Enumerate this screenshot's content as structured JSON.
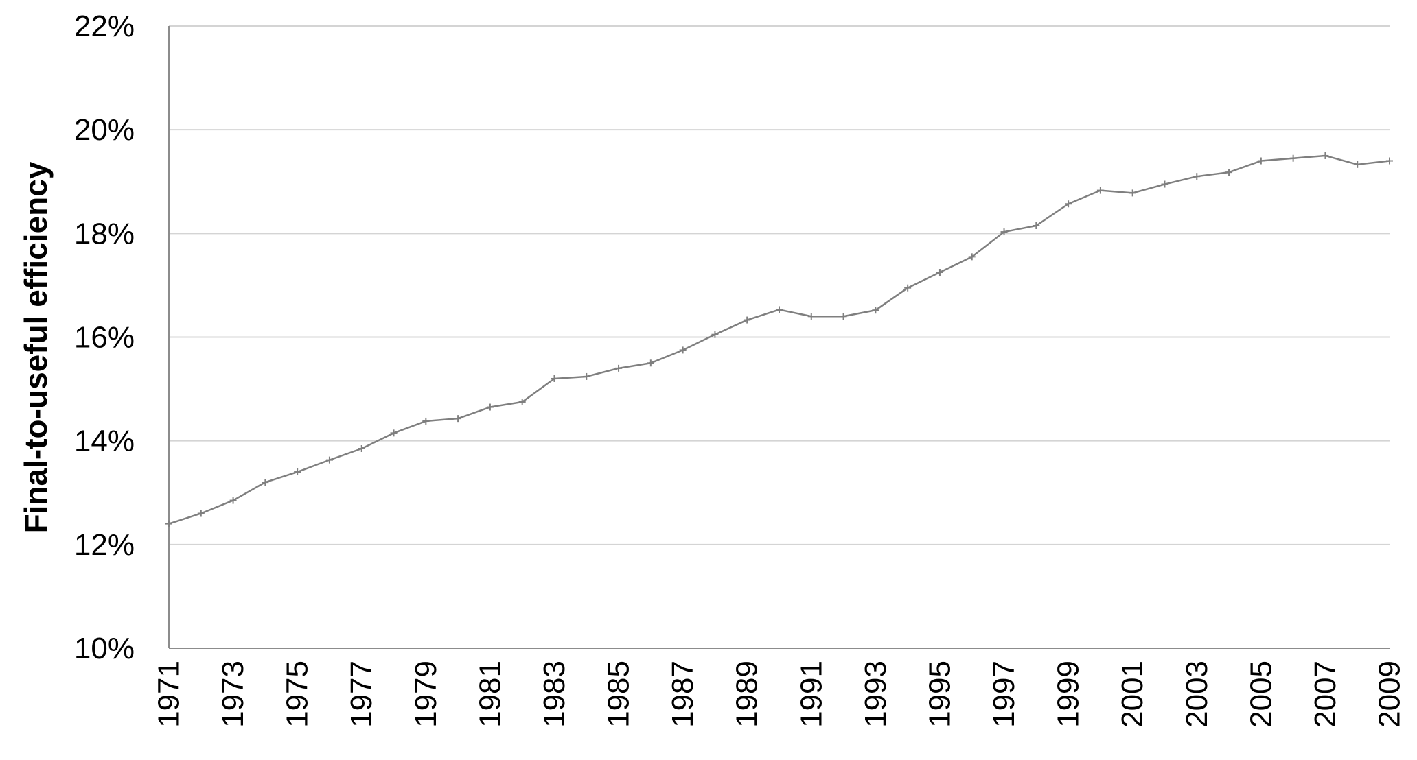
{
  "chart_data": {
    "type": "line",
    "title": "",
    "xlabel": "",
    "ylabel": "Final-to-useful efficiency",
    "ylim": [
      0.1,
      0.22
    ],
    "y_ticks": [
      {
        "value": 0.1,
        "label": "10%"
      },
      {
        "value": 0.12,
        "label": "12%"
      },
      {
        "value": 0.14,
        "label": "14%"
      },
      {
        "value": 0.16,
        "label": "16%"
      },
      {
        "value": 0.18,
        "label": "18%"
      },
      {
        "value": 0.2,
        "label": "20%"
      },
      {
        "value": 0.22,
        "label": "22%"
      }
    ],
    "x_tick_labels": [
      "1971",
      "1973",
      "1975",
      "1977",
      "1979",
      "1981",
      "1983",
      "1985",
      "1987",
      "1989",
      "1991",
      "1993",
      "1995",
      "1997",
      "1999",
      "2001",
      "2003",
      "2005",
      "2007",
      "2009"
    ],
    "grid": "horizontal",
    "legend": "none",
    "colors": {
      "line": "#7f7f7f",
      "marker": "#7f7f7f",
      "grid": "#d4d4d4",
      "axis": "#8c8c8c"
    },
    "x": [
      1971,
      1972,
      1973,
      1974,
      1975,
      1976,
      1977,
      1978,
      1979,
      1980,
      1981,
      1982,
      1983,
      1984,
      1985,
      1986,
      1987,
      1988,
      1989,
      1990,
      1991,
      1992,
      1993,
      1994,
      1995,
      1996,
      1997,
      1998,
      1999,
      2000,
      2001,
      2002,
      2003,
      2004,
      2005,
      2006,
      2007,
      2008,
      2009
    ],
    "series": [
      {
        "values": [
          0.124,
          0.126,
          0.1285,
          0.132,
          0.134,
          0.1363,
          0.1385,
          0.1415,
          0.1438,
          0.1443,
          0.1465,
          0.1475,
          0.152,
          0.1524,
          0.154,
          0.155,
          0.1575,
          0.1605,
          0.1633,
          0.1653,
          0.164,
          0.164,
          0.1652,
          0.1695,
          0.1725,
          0.1755,
          0.1803,
          0.1815,
          0.1857,
          0.1883,
          0.1878,
          0.1895,
          0.191,
          0.1918,
          0.194,
          0.1945,
          0.195,
          0.1933,
          0.194
        ]
      }
    ]
  }
}
